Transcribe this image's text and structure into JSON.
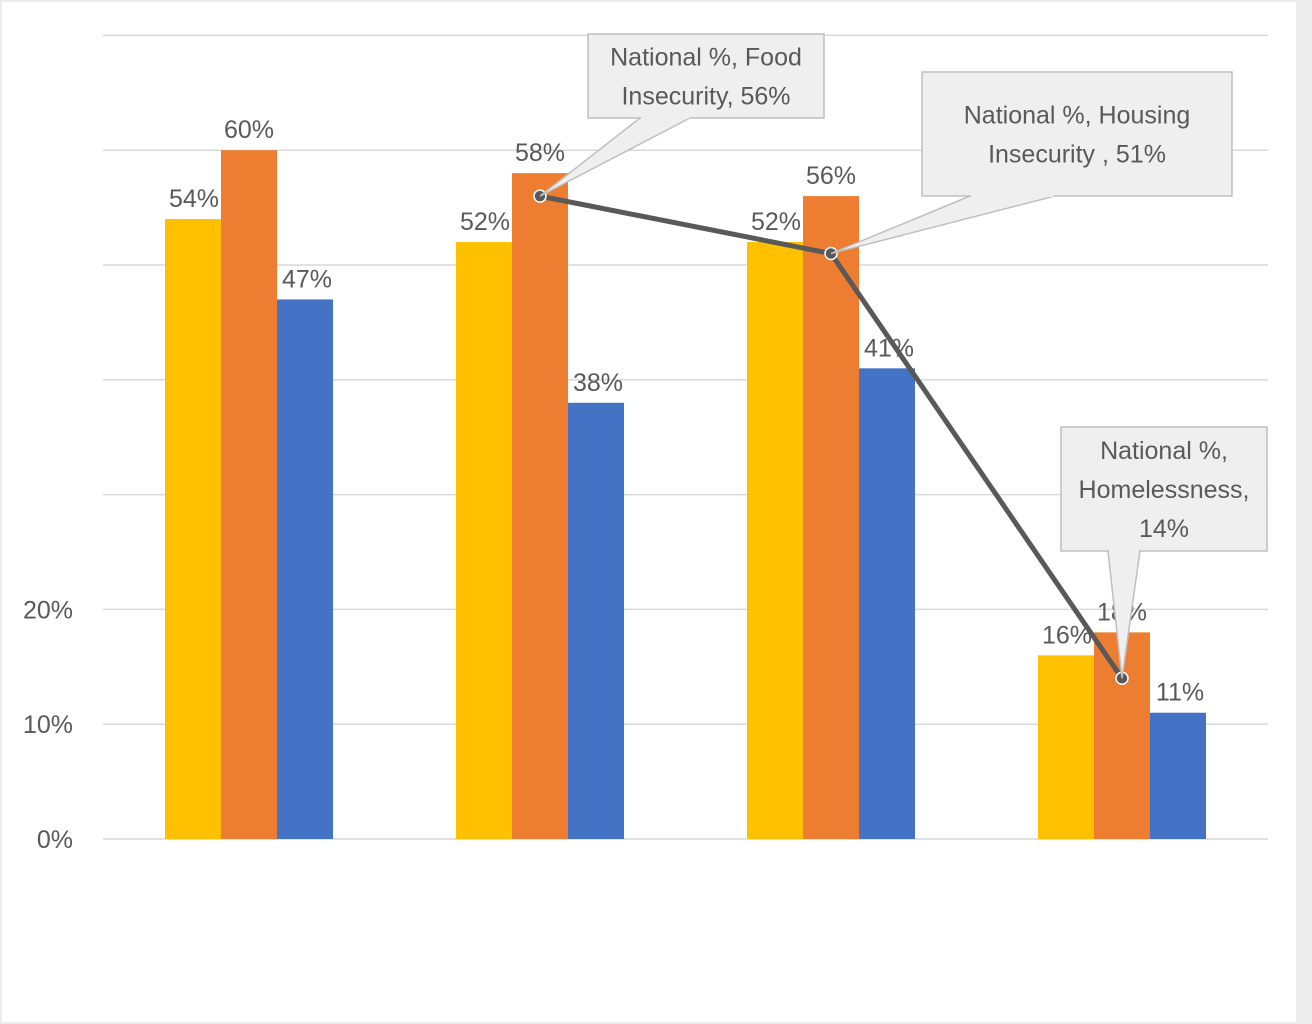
{
  "chart_data": {
    "type": "bar",
    "title": "",
    "xlabel": "",
    "ylabel": "",
    "categories": [
      "",
      "",
      "",
      ""
    ],
    "ylim": [
      0,
      70
    ],
    "ytick_values": [
      0,
      10,
      20
    ],
    "ytick_labels": [
      "0%",
      "10%",
      "20%"
    ],
    "gridlines": [
      0,
      10,
      20,
      30,
      40,
      50,
      60,
      70
    ],
    "grid": true,
    "series": [
      {
        "color": "#FFC000",
        "values": [
          54,
          52,
          52,
          16
        ],
        "labels": [
          "54%",
          "52%",
          "52%",
          "16%"
        ]
      },
      {
        "color": "#ED7D31",
        "values": [
          60,
          58,
          56,
          18
        ],
        "labels": [
          "60%",
          "58%",
          "56%",
          "18%"
        ]
      },
      {
        "color": "#4472C4",
        "values": [
          47,
          38,
          41,
          11
        ],
        "labels": [
          "47%",
          "38%",
          "41%",
          "11%"
        ]
      }
    ],
    "line_series": {
      "color": "#595959",
      "points": [
        {
          "category_index": 1,
          "value": 56,
          "callout": "National %, Food Insecurity, 56%",
          "callout_lines": [
            "National %, Food",
            "Insecurity, 56%"
          ]
        },
        {
          "category_index": 2,
          "value": 51,
          "callout": "National %, Housing Insecurity , 51%",
          "callout_lines": [
            "National %, Housing",
            "Insecurity , 51%"
          ]
        },
        {
          "category_index": 3,
          "value": 14,
          "callout": "National %, Homelessness, 14%",
          "callout_lines": [
            "National %,",
            "Homelessness,",
            "14%"
          ]
        }
      ]
    }
  }
}
